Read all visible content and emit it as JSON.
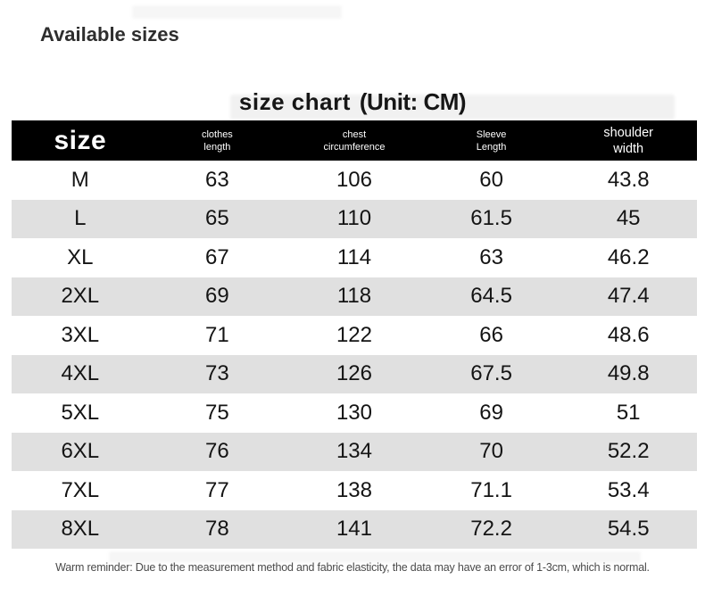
{
  "page": {
    "title": "Available sizes",
    "chart_title": "size chart",
    "chart_unit": "(Unit: CM)",
    "reminder": "Warm reminder: Due to the measurement method and fabric elasticity, the data may have an error of 1-3cm, which is normal."
  },
  "colors": {
    "header_bg": "#000000",
    "header_text": "#ffffff",
    "row_bg": "#ffffff",
    "row_alt_bg": "#e0e0e0",
    "body_text": "#141414",
    "reminder_text": "#4a4a4a"
  },
  "table": {
    "size_header": "size",
    "column_headers": [
      {
        "lines": [
          "clothes",
          "length"
        ],
        "big": false
      },
      {
        "lines": [
          "chest",
          "circumference"
        ],
        "big": false
      },
      {
        "lines": [
          "Sleeve",
          "Length"
        ],
        "big": false
      },
      {
        "lines": [
          "shoulder",
          "width"
        ],
        "big": true
      }
    ]
  },
  "chart_data": {
    "type": "table",
    "title": "size chart (Unit: CM)",
    "columns": [
      "size",
      "clothes length",
      "chest circumference",
      "Sleeve Length",
      "shoulder width"
    ],
    "rows": [
      [
        "M",
        "63",
        "106",
        "60",
        "43.8"
      ],
      [
        "L",
        "65",
        "110",
        "61.5",
        "45"
      ],
      [
        "XL",
        "67",
        "114",
        "63",
        "46.2"
      ],
      [
        "2XL",
        "69",
        "118",
        "64.5",
        "47.4"
      ],
      [
        "3XL",
        "71",
        "122",
        "66",
        "48.6"
      ],
      [
        "4XL",
        "73",
        "126",
        "67.5",
        "49.8"
      ],
      [
        "5XL",
        "75",
        "130",
        "69",
        "51"
      ],
      [
        "6XL",
        "76",
        "134",
        "70",
        "52.2"
      ],
      [
        "7XL",
        "77",
        "138",
        "71.1",
        "53.4"
      ],
      [
        "8XL",
        "78",
        "141",
        "72.2",
        "54.5"
      ]
    ]
  }
}
